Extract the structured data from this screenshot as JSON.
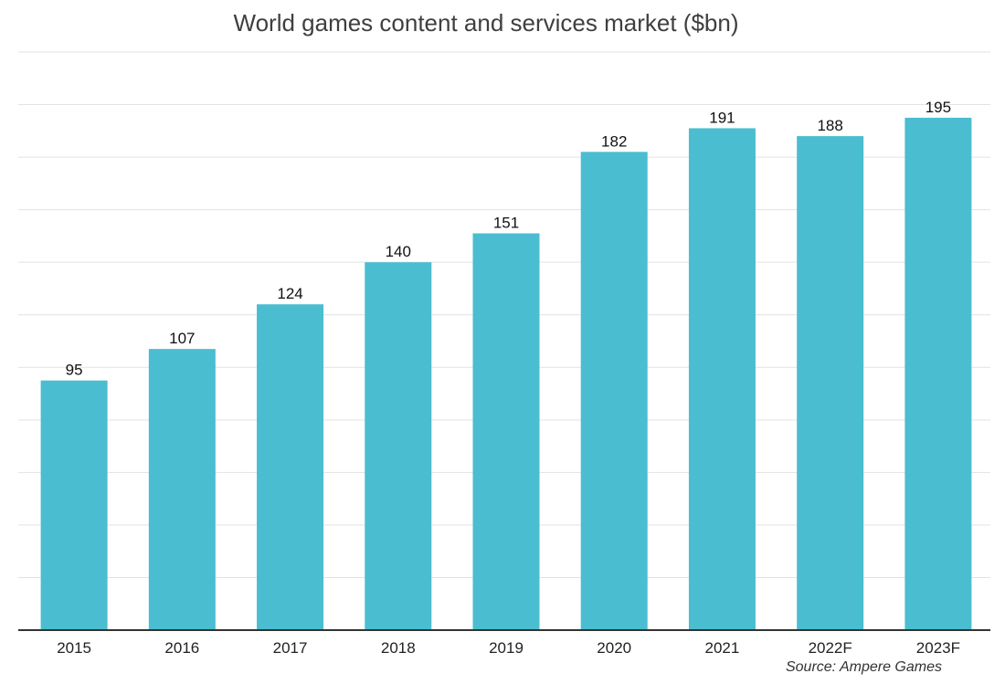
{
  "chart_data": {
    "type": "bar",
    "title": "World games content and services market ($bn)",
    "categories": [
      "2015",
      "2016",
      "2017",
      "2018",
      "2019",
      "2020",
      "2021",
      "2022F",
      "2023F"
    ],
    "values": [
      95,
      107,
      124,
      140,
      151,
      182,
      191,
      188,
      195
    ],
    "data_labels": [
      "95",
      "107",
      "124",
      "140",
      "151",
      "182",
      "191",
      "188",
      "195"
    ],
    "xlabel": "",
    "ylabel": "",
    "ylim": [
      0,
      220
    ],
    "grid": true,
    "legend": "none",
    "bar_color": "#4bbdd0",
    "source": "Source: Ampere Games"
  }
}
